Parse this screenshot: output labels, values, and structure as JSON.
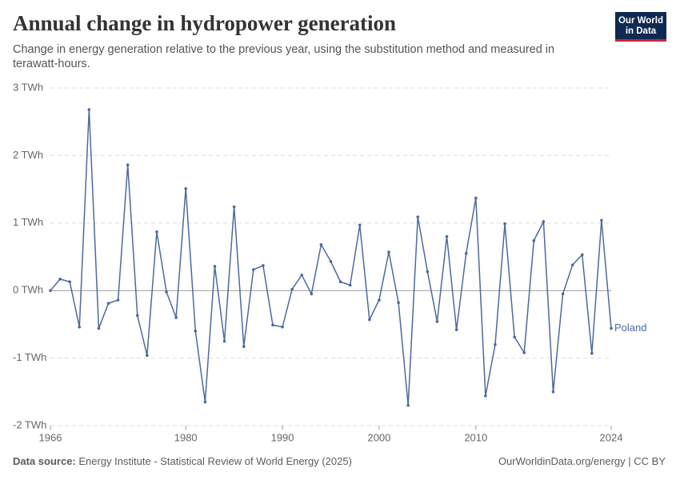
{
  "logo": [
    "Our World",
    "in Data"
  ],
  "chart_data": {
    "type": "line",
    "title": "Annual change in hydropower generation",
    "subtitle": "Change in energy generation relative to the previous year, using the substitution method and measured in terawatt-hours.",
    "x": [
      1966,
      1967,
      1968,
      1969,
      1970,
      1971,
      1972,
      1973,
      1974,
      1975,
      1976,
      1977,
      1978,
      1979,
      1980,
      1981,
      1982,
      1983,
      1984,
      1985,
      1986,
      1987,
      1988,
      1989,
      1990,
      1991,
      1992,
      1993,
      1994,
      1995,
      1996,
      1997,
      1998,
      1999,
      2000,
      2001,
      2002,
      2003,
      2004,
      2005,
      2006,
      2007,
      2008,
      2009,
      2010,
      2011,
      2012,
      2013,
      2014,
      2015,
      2016,
      2017,
      2018,
      2019,
      2020,
      2021,
      2022,
      2023,
      2024
    ],
    "series": [
      {
        "name": "Poland",
        "color": "#4c6a9c",
        "values": [
          0,
          0.17,
          0.13,
          -0.54,
          2.68,
          -0.56,
          -0.19,
          -0.14,
          1.86,
          -0.37,
          -0.96,
          0.87,
          -0.02,
          -0.4,
          1.51,
          -0.6,
          -1.65,
          0.36,
          -0.75,
          1.24,
          -0.83,
          0.31,
          0.37,
          -0.51,
          -0.54,
          0.02,
          0.23,
          -0.05,
          0.68,
          0.43,
          0.13,
          0.08,
          0.97,
          -0.43,
          -0.14,
          0.57,
          -0.18,
          -1.7,
          1.09,
          0.28,
          -0.46,
          0.8,
          -0.58,
          0.55,
          1.37,
          -1.56,
          -0.8,
          0.99,
          -0.69,
          -0.92,
          0.74,
          1.02,
          -1.5,
          -0.05,
          0.38,
          0.53,
          -0.93,
          1.04,
          -0.56
        ]
      }
    ],
    "xlim": [
      1966,
      2024
    ],
    "xticks": [
      1966,
      1980,
      1990,
      2000,
      2010,
      2024
    ],
    "ylim": [
      -2,
      3
    ],
    "yticks": [
      {
        "value": -2,
        "label": "-2 TWh"
      },
      {
        "value": -1,
        "label": "-1 TWh"
      },
      {
        "value": 0,
        "label": "0 TWh"
      },
      {
        "value": 1,
        "label": "1 TWh"
      },
      {
        "value": 2,
        "label": "2 TWh"
      },
      {
        "value": 3,
        "label": "3 TWh"
      }
    ],
    "grid": true,
    "source_label": "Data source:",
    "source": "Energy Institute - Statistical Review of World Energy (2025)",
    "credit": "OurWorldinData.org/energy | CC BY"
  }
}
